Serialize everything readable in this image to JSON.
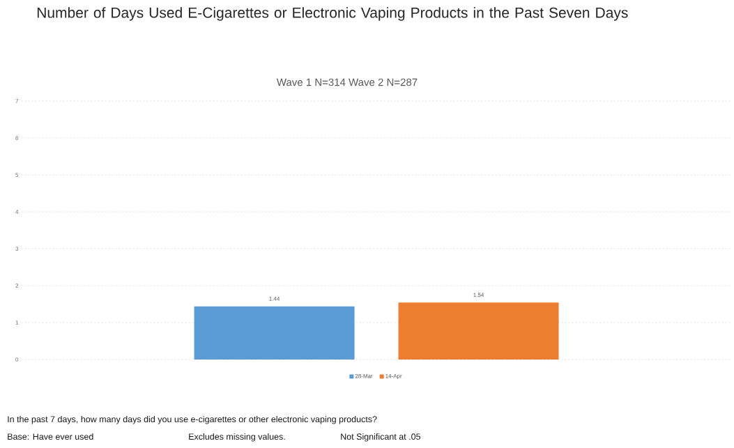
{
  "chart_data": {
    "type": "bar",
    "title": "Number of Days Used E-Cigarettes or Electronic Vaping Products in the Past Seven Days",
    "subtitle": "Wave 1 N=314  Wave 2  N=287",
    "categories": [
      null
    ],
    "series": [
      {
        "name": "28-Mar",
        "color": "#5b9bd5",
        "values": [
          1.44
        ]
      },
      {
        "name": "14-Apr",
        "color": "#ed7d31",
        "values": [
          1.54
        ]
      }
    ],
    "ylim": [
      0,
      7
    ],
    "yticks": [
      0,
      1,
      2,
      3,
      4,
      5,
      6,
      7
    ],
    "grid": "y",
    "legend": "bottom",
    "data_labels": true,
    "annotations": [
      "In the past 7 days, how many days did you use e-cigarettes or other electronic vaping products?",
      "Base: Have ever used",
      "Excludes missing values.",
      "Not Significant at .05"
    ]
  }
}
